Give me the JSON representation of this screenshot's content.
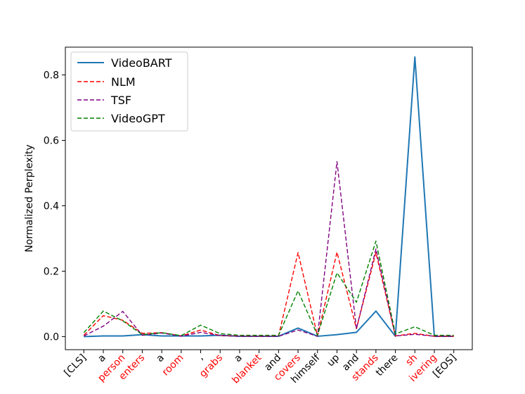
{
  "chart_data": {
    "type": "line",
    "title": "",
    "xlabel": "",
    "ylabel": "Normalized Perplexity",
    "ylim": [
      -0.04,
      0.885
    ],
    "yticks": [
      0.0,
      0.2,
      0.4,
      0.6,
      0.8
    ],
    "ytick_labels": [
      "0.0",
      "0.2",
      "0.4",
      "0.6",
      "0.8"
    ],
    "grid": false,
    "legend_position": "top-left",
    "categories": [
      "[CLS]",
      "a",
      "person",
      "enters",
      "a",
      "room",
      ",",
      "grabs",
      "a",
      "blanket",
      "and",
      "covers",
      "himself",
      "up",
      "and",
      "stands",
      "there",
      "sh",
      "ivering",
      "[EOS]"
    ],
    "category_colors": [
      "#000000",
      "#000000",
      "#ff0000",
      "#ff0000",
      "#000000",
      "#ff0000",
      "#000000",
      "#ff0000",
      "#000000",
      "#ff0000",
      "#000000",
      "#ff0000",
      "#000000",
      "#000000",
      "#000000",
      "#ff0000",
      "#000000",
      "#ff0000",
      "#ff0000",
      "#000000"
    ],
    "series": [
      {
        "name": "VideoBART",
        "color": "#1f77b4",
        "style": "solid",
        "values": [
          0.0,
          0.002,
          0.002,
          0.006,
          0.002,
          0.002,
          0.002,
          0.004,
          0.001,
          0.001,
          0.001,
          0.026,
          0.001,
          0.006,
          0.013,
          0.078,
          0.001,
          0.855,
          0.001,
          0.001
        ]
      },
      {
        "name": "NLM",
        "color": "#ff0000",
        "style": "dashed",
        "values": [
          0.004,
          0.064,
          0.05,
          0.01,
          0.012,
          0.002,
          0.02,
          0.003,
          0.002,
          0.001,
          0.002,
          0.257,
          0.002,
          0.258,
          0.024,
          0.257,
          0.002,
          0.01,
          0.001,
          0.001
        ]
      },
      {
        "name": "TSF",
        "color": "#800080",
        "style": "dashed",
        "values": [
          0.002,
          0.032,
          0.077,
          0.004,
          0.011,
          0.001,
          0.013,
          0.003,
          0.001,
          0.001,
          0.001,
          0.02,
          0.001,
          0.535,
          0.024,
          0.268,
          0.002,
          0.007,
          0.001,
          0.001
        ]
      },
      {
        "name": "VideoGPT",
        "color": "#008000",
        "style": "dashed",
        "values": [
          0.012,
          0.078,
          0.048,
          0.006,
          0.012,
          0.003,
          0.035,
          0.009,
          0.004,
          0.004,
          0.004,
          0.14,
          0.004,
          0.195,
          0.105,
          0.292,
          0.008,
          0.03,
          0.004,
          0.004
        ]
      }
    ]
  }
}
